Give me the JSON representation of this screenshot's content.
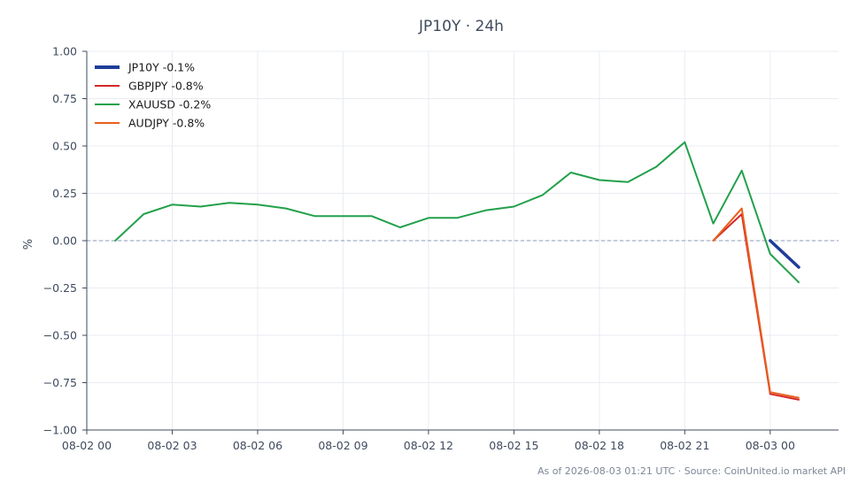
{
  "chart_data": {
    "type": "line",
    "title": "JP10Y · 24h",
    "xlabel": "",
    "ylabel": "%",
    "xlim": [
      "2026-08-02 00:00",
      "2026-08-03 02:24"
    ],
    "ylim": [
      -1.0,
      1.0
    ],
    "yticks": [
      -1.0,
      -0.75,
      -0.5,
      -0.25,
      0.0,
      0.25,
      0.5,
      0.75,
      1.0
    ],
    "ytick_labels": [
      "−1.00",
      "−0.75",
      "−0.50",
      "−0.25",
      "0.00",
      "0.25",
      "0.50",
      "0.75",
      "1.00"
    ],
    "xticks": [
      "2026-08-02 00:00",
      "2026-08-02 03:00",
      "2026-08-02 06:00",
      "2026-08-02 09:00",
      "2026-08-02 12:00",
      "2026-08-02 15:00",
      "2026-08-02 18:00",
      "2026-08-02 21:00",
      "2026-08-03 00:00"
    ],
    "xtick_labels": [
      "08-02 00",
      "08-02 03",
      "08-02 06",
      "08-02 09",
      "08-02 12",
      "08-02 15",
      "08-02 18",
      "08-02 21",
      "08-03 00"
    ],
    "grid": true,
    "zero_line": true,
    "legend_position": "top-left",
    "series": [
      {
        "name": "JP10Y -0.1%",
        "color": "#1f3d99",
        "width": "thick",
        "points": [
          [
            "2026-08-03 00:00",
            0.0
          ],
          [
            "2026-08-03 01:00",
            -0.14
          ]
        ]
      },
      {
        "name": "GBPJPY -0.8%",
        "color": "#d62728",
        "points": [
          [
            "2026-08-02 22:00",
            0.0
          ],
          [
            "2026-08-02 23:00",
            0.14
          ],
          [
            "2026-08-03 00:00",
            -0.81
          ],
          [
            "2026-08-03 01:00",
            -0.84
          ]
        ]
      },
      {
        "name": "XAUUSD -0.2%",
        "color": "#22a04b",
        "points": [
          [
            "2026-08-02 01:00",
            0.0
          ],
          [
            "2026-08-02 02:00",
            0.14
          ],
          [
            "2026-08-02 03:00",
            0.19
          ],
          [
            "2026-08-02 04:00",
            0.18
          ],
          [
            "2026-08-02 05:00",
            0.2
          ],
          [
            "2026-08-02 06:00",
            0.19
          ],
          [
            "2026-08-02 07:00",
            0.17
          ],
          [
            "2026-08-02 08:00",
            0.13
          ],
          [
            "2026-08-02 09:00",
            0.13
          ],
          [
            "2026-08-02 10:00",
            0.13
          ],
          [
            "2026-08-02 11:00",
            0.07
          ],
          [
            "2026-08-02 12:00",
            0.12
          ],
          [
            "2026-08-02 13:00",
            0.12
          ],
          [
            "2026-08-02 14:00",
            0.16
          ],
          [
            "2026-08-02 15:00",
            0.18
          ],
          [
            "2026-08-02 16:00",
            0.24
          ],
          [
            "2026-08-02 17:00",
            0.36
          ],
          [
            "2026-08-02 18:00",
            0.32
          ],
          [
            "2026-08-02 19:00",
            0.31
          ],
          [
            "2026-08-02 20:00",
            0.39
          ],
          [
            "2026-08-02 21:00",
            0.52
          ],
          [
            "2026-08-02 22:00",
            0.09
          ],
          [
            "2026-08-02 23:00",
            0.37
          ],
          [
            "2026-08-03 00:00",
            -0.07
          ],
          [
            "2026-08-03 01:00",
            -0.22
          ]
        ]
      },
      {
        "name": "AUDJPY -0.8%",
        "color": "#e8601c",
        "points": [
          [
            "2026-08-02 22:00",
            0.0
          ],
          [
            "2026-08-02 23:00",
            0.17
          ],
          [
            "2026-08-03 00:00",
            -0.8
          ],
          [
            "2026-08-03 01:00",
            -0.83
          ]
        ]
      }
    ]
  },
  "footer": "As of 2026-08-03 01:21 UTC · Source: CoinUnited.io market API"
}
